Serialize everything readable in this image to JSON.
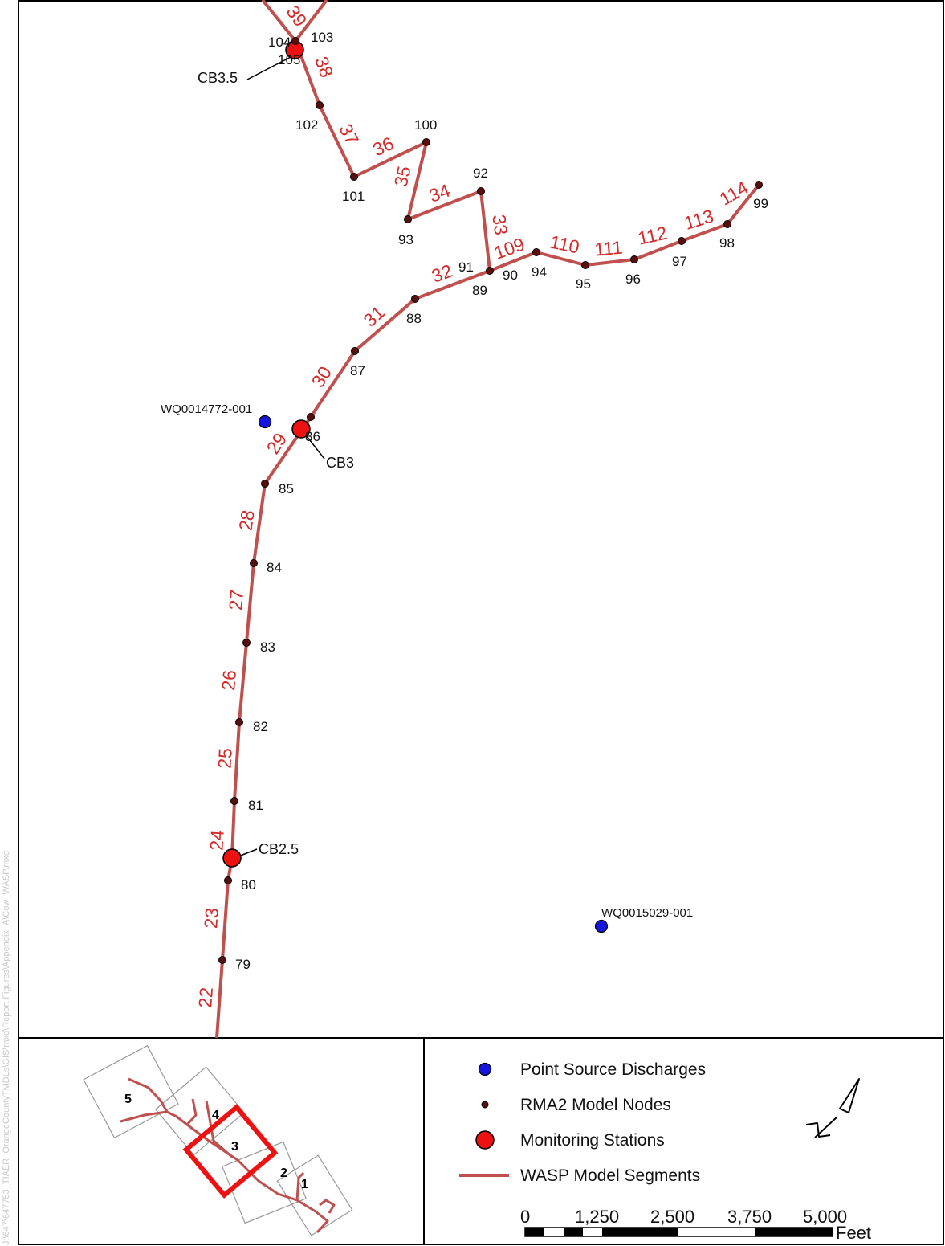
{
  "map": {
    "stations": [
      {
        "name": "CB3.5"
      },
      {
        "name": "CB3"
      },
      {
        "name": "CB2.5"
      }
    ],
    "point_sources": [
      {
        "name": "WQ0014772-001"
      },
      {
        "name": "WQ0015029-001"
      }
    ],
    "node_labels": [
      "104",
      "103",
      "105",
      "102",
      "100",
      "101",
      "92",
      "93",
      "91",
      "89",
      "90",
      "94",
      "95",
      "96",
      "97",
      "98",
      "99",
      "88",
      "87",
      "86",
      "85",
      "84",
      "83",
      "82",
      "81",
      "80",
      "79"
    ],
    "segment_labels": [
      "39",
      "38",
      "37",
      "36",
      "35",
      "34",
      "33",
      "32",
      "31",
      "30",
      "29",
      "28",
      "27",
      "26",
      "25",
      "24",
      "23",
      "22",
      "109",
      "110",
      "111",
      "112",
      "113",
      "114"
    ],
    "colors": {
      "segment_line": "#c0504d",
      "segment_label": "#d42a2a",
      "node": "#5a0f0f",
      "station": "#ee1111",
      "point_source": "#1515dd",
      "index_box": "#ee1111"
    }
  },
  "index_map": {
    "panels": [
      "5",
      "4",
      "3",
      "2",
      "1"
    ],
    "highlighted": "3"
  },
  "legend": {
    "items": [
      {
        "symbol": "blue-circle",
        "label": "Point Source Discharges"
      },
      {
        "symbol": "small-dark-red-dot",
        "label": "RMA2 Model Nodes"
      },
      {
        "symbol": "large-red-circle",
        "label": "Monitoring Stations"
      },
      {
        "symbol": "red-line",
        "label": "WASP Model Segments"
      }
    ]
  },
  "north_arrow": {
    "icon": "north-arrow-icon"
  },
  "scale_bar": {
    "ticks": [
      "0",
      "1,250",
      "2,500",
      "3,750",
      "5,000"
    ],
    "unit": "Feet"
  },
  "side_path": "J:\\647\\647753_TIAER_OrangeCountyTMDLs\\GIS\\mxd\\Report Figures\\Appendix_A\\Cow_WASP.mxd"
}
